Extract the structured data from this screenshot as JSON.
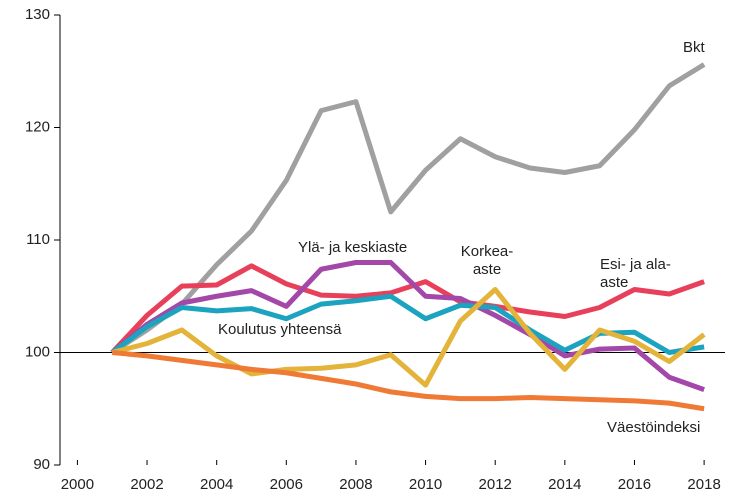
{
  "chart_data": {
    "type": "line",
    "x": [
      2001,
      2002,
      2003,
      2004,
      2005,
      2006,
      2007,
      2008,
      2009,
      2010,
      2011,
      2012,
      2013,
      2014,
      2015,
      2016,
      2017,
      2018
    ],
    "series": [
      {
        "name": "Bkt",
        "color": "#a0a0a0",
        "values": [
          100,
          102,
          104.3,
          107.8,
          110.8,
          115.3,
          121.5,
          122.3,
          112.5,
          116.2,
          119,
          117.4,
          116.4,
          116,
          116.6,
          119.8,
          123.7,
          125.6
        ]
      },
      {
        "name": "Esi- ja ala-aste",
        "color": "#e8405a",
        "values": [
          100,
          103.3,
          105.9,
          106,
          107.7,
          106.1,
          105.1,
          105,
          105.3,
          106.3,
          104.5,
          104.1,
          103.6,
          103.2,
          104,
          105.6,
          105.2,
          106.3
        ]
      },
      {
        "name": "Ylä- ja keskiaste",
        "color": "#a347a8",
        "values": [
          100,
          102.5,
          104.4,
          105,
          105.5,
          104.1,
          107.4,
          108,
          108,
          105,
          104.8,
          103.3,
          101.6,
          99.7,
          100.3,
          100.4,
          97.8,
          96.7
        ]
      },
      {
        "name": "Koulutus yhteensä",
        "color": "#1ba3bf",
        "values": [
          100,
          102.3,
          104,
          103.7,
          103.9,
          103,
          104.3,
          104.6,
          105,
          103,
          104.2,
          104,
          102,
          100.2,
          101.7,
          101.8,
          100,
          100.5
        ]
      },
      {
        "name": "Korkea-aste",
        "color": "#e3b33a",
        "values": [
          100,
          100.8,
          102,
          99.7,
          98.1,
          98.5,
          98.6,
          98.9,
          99.8,
          97.1,
          102.8,
          105.6,
          101.7,
          98.5,
          102,
          101,
          99.2,
          101.6
        ]
      },
      {
        "name": "Väestöindeksi",
        "color": "#ef7a35",
        "values": [
          100,
          99.7,
          99.3,
          98.9,
          98.5,
          98.2,
          97.7,
          97.2,
          96.5,
          96.1,
          95.9,
          95.9,
          96,
          95.9,
          95.8,
          95.7,
          95.5,
          95
        ]
      }
    ],
    "xlim": [
      1999.5,
      2018.6
    ],
    "xticks": [
      2000,
      2002,
      2004,
      2006,
      2008,
      2010,
      2012,
      2014,
      2016,
      2018
    ],
    "ylim": [
      90,
      130
    ],
    "yticks": [
      90,
      100,
      110,
      120,
      130
    ]
  }
}
